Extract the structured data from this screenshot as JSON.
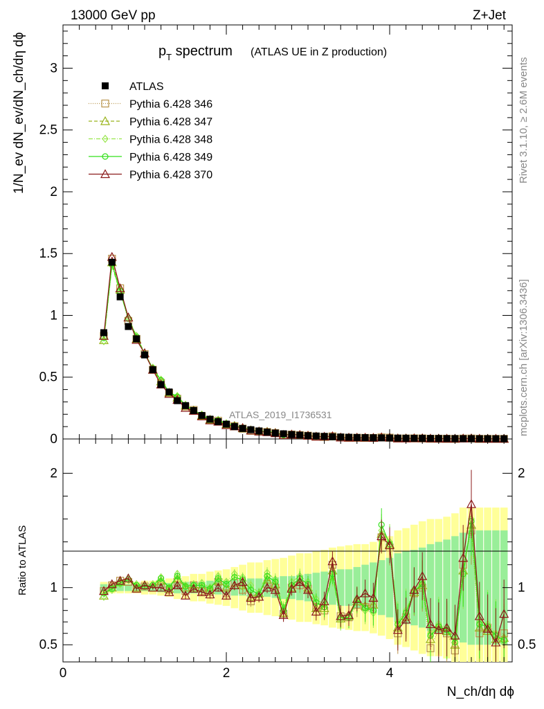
{
  "header": {
    "energy_label": "13000 GeV pp",
    "process_label": "Z+Jet",
    "side_label_top": "Rivet 3.1.10, ≥ 2.6M events",
    "side_label_bottom": "mcplots.cern.ch [arXiv:1306.3436]",
    "watermark": "ATLAS_2019_I1736531"
  },
  "chart_data": {
    "type": "scatter",
    "title_main": "p",
    "title_sub": "T",
    "title_rest": " spectrum",
    "title_note": "(ATLAS UE in Z production)",
    "ylabel": "1/N_ev dN_ev/dN_ch/dη dϕ",
    "ratio_ylabel": "Ratio to ATLAS",
    "xlabel": "N_ch/dη dϕ",
    "xlim": [
      0,
      5.5
    ],
    "ylim": [
      0,
      3.35
    ],
    "ratio_ylim": [
      0.35,
      2.3
    ],
    "x_ticks": [
      "0",
      "2",
      "4"
    ],
    "y_ticks": [
      "0",
      "0.5",
      "1",
      "1.5",
      "2",
      "2.5",
      "3"
    ],
    "ratio_y_ticks": [
      "0.5",
      "1",
      "2"
    ],
    "x": [
      0.5,
      0.6,
      0.7,
      0.8,
      0.9,
      1.0,
      1.1,
      1.2,
      1.3,
      1.4,
      1.5,
      1.6,
      1.7,
      1.8,
      1.9,
      2.0,
      2.1,
      2.2,
      2.3,
      2.4,
      2.5,
      2.6,
      2.7,
      2.8,
      2.9,
      3.0,
      3.1,
      3.2,
      3.3,
      3.4,
      3.5,
      3.6,
      3.7,
      3.8,
      3.9,
      4.0,
      4.1,
      4.2,
      4.3,
      4.4,
      4.5,
      4.6,
      4.7,
      4.8,
      4.9,
      5.0,
      5.1,
      5.2,
      5.3,
      5.4
    ],
    "atlas": [
      0.86,
      1.43,
      1.15,
      0.91,
      0.81,
      0.68,
      0.56,
      0.44,
      0.38,
      0.31,
      0.27,
      0.23,
      0.19,
      0.16,
      0.14,
      0.12,
      0.1,
      0.085,
      0.075,
      0.065,
      0.055,
      0.048,
      0.042,
      0.036,
      0.031,
      0.027,
      0.024,
      0.021,
      0.018,
      0.016,
      0.014,
      0.012,
      0.011,
      0.01,
      0.009,
      0.008,
      0.007,
      0.006,
      0.0055,
      0.005,
      0.0045,
      0.004,
      0.0035,
      0.003,
      0.0028,
      0.0026,
      0.0024,
      0.0022,
      0.002,
      0.0018
    ],
    "legend": [
      {
        "label": "ATLAS",
        "marker": "filled-square",
        "color": "#000000",
        "dash": ""
      },
      {
        "label": "Pythia 6.428 346",
        "marker": "open-square",
        "color": "#b8924a",
        "dash": "1,2"
      },
      {
        "label": "Pythia 6.428 347",
        "marker": "open-triangle",
        "color": "#99b31a",
        "dash": "5,3"
      },
      {
        "label": "Pythia 6.428 348",
        "marker": "open-diamond",
        "color": "#99e64d",
        "dash": "6,2,1,2"
      },
      {
        "label": "Pythia 6.428 349",
        "marker": "open-circle",
        "color": "#33e01a",
        "dash": ""
      },
      {
        "label": "Pythia 6.428 370",
        "marker": "open-triangle",
        "color": "#8b1a1a",
        "dash": ""
      }
    ],
    "series": [
      {
        "name": "Pythia 6.428 346",
        "ratio": [
          0.97,
          1.02,
          1.06,
          1.05,
          1.0,
          1.01,
          1.0,
          1.03,
          0.98,
          1.05,
          0.97,
          1.02,
          0.97,
          0.96,
          1.05,
          0.95,
          1.04,
          0.98,
          0.88,
          0.92,
          1.03,
          1.0,
          0.77,
          1.0,
          1.02,
          0.99,
          0.83,
          0.8,
          1.2,
          0.75,
          0.74,
          0.85,
          0.83,
          0.86,
          1.44,
          1.35,
          0.6,
          0.74,
          0.95,
          1.0,
          0.47,
          0.63,
          0.6,
          0.45,
          1.2,
          1.5,
          0.6,
          0.65,
          0.58,
          0.6
        ]
      },
      {
        "name": "Pythia 6.428 347",
        "ratio": [
          0.93,
          1.0,
          1.05,
          1.08,
          1.0,
          1.02,
          1.0,
          1.06,
          0.99,
          1.08,
          1.0,
          1.0,
          1.0,
          0.98,
          1.06,
          1.0,
          1.02,
          1.02,
          0.92,
          0.95,
          1.07,
          1.03,
          0.78,
          1.0,
          1.05,
          1.0,
          0.82,
          0.82,
          1.15,
          0.73,
          0.75,
          0.88,
          0.84,
          0.85,
          1.47,
          1.38,
          0.65,
          0.75,
          0.96,
          1.02,
          0.55,
          0.65,
          0.62,
          0.5,
          1.15,
          1.55,
          0.65,
          0.62,
          0.55,
          0.56
        ]
      },
      {
        "name": "Pythia 6.428 348",
        "ratio": [
          0.92,
          0.98,
          1.03,
          1.08,
          1.03,
          1.02,
          1.03,
          1.09,
          1.0,
          1.12,
          1.02,
          1.03,
          1.04,
          1.0,
          1.1,
          1.05,
          1.12,
          1.09,
          1.02,
          0.95,
          1.13,
          1.07,
          0.82,
          1.05,
          1.1,
          1.05,
          0.9,
          0.85,
          1.1,
          0.72,
          0.75,
          0.9,
          0.8,
          0.78,
          1.5,
          1.4,
          0.7,
          0.8,
          0.98,
          1.05,
          0.6,
          0.68,
          0.65,
          0.55,
          1.1,
          1.6,
          0.7,
          0.68,
          0.6,
          0.52
        ]
      },
      {
        "name": "Pythia 6.428 349",
        "ratio": [
          0.95,
          0.99,
          1.04,
          1.07,
          1.02,
          1.01,
          1.02,
          1.08,
          1.0,
          1.1,
          1.01,
          1.02,
          1.02,
          0.99,
          1.08,
          1.03,
          1.09,
          1.07,
          0.98,
          0.94,
          1.1,
          1.05,
          0.8,
          1.02,
          1.08,
          1.03,
          0.87,
          0.83,
          1.12,
          0.74,
          0.74,
          0.89,
          0.82,
          0.8,
          1.55,
          1.38,
          0.68,
          0.78,
          0.97,
          1.03,
          0.58,
          0.66,
          0.63,
          0.52,
          1.12,
          1.58,
          0.68,
          0.66,
          0.58,
          0.54
        ]
      },
      {
        "name": "Pythia 6.428 370",
        "ratio": [
          0.97,
          1.03,
          1.06,
          1.08,
          0.99,
          1.02,
          1.0,
          1.0,
          0.96,
          1.02,
          0.93,
          0.99,
          0.96,
          0.94,
          1.0,
          0.93,
          1.02,
          1.05,
          0.91,
          0.92,
          1.0,
          0.98,
          0.76,
          0.99,
          1.05,
          0.98,
          0.79,
          0.88,
          1.23,
          0.75,
          0.76,
          0.9,
          0.95,
          0.91,
          1.45,
          1.37,
          0.63,
          0.72,
          0.98,
          1.1,
          0.68,
          0.63,
          0.65,
          0.58,
          1.26,
          1.73,
          0.75,
          0.64,
          0.52,
          0.77
        ]
      }
    ],
    "band_stat": [
      0.03,
      0.03,
      0.03,
      0.03,
      0.03,
      0.03,
      0.03,
      0.04,
      0.04,
      0.05,
      0.05,
      0.05,
      0.05,
      0.06,
      0.06,
      0.06,
      0.07,
      0.07,
      0.08,
      0.08,
      0.08,
      0.09,
      0.1,
      0.1,
      0.11,
      0.12,
      0.13,
      0.14,
      0.15,
      0.16,
      0.16,
      0.18,
      0.2,
      0.22,
      0.24,
      0.26,
      0.3,
      0.32,
      0.33,
      0.35,
      0.38,
      0.4,
      0.42,
      0.45,
      0.48,
      0.5,
      0.5,
      0.5,
      0.5,
      0.5
    ],
    "band_syst": [
      0.05,
      0.05,
      0.05,
      0.05,
      0.05,
      0.06,
      0.06,
      0.07,
      0.08,
      0.1,
      0.1,
      0.12,
      0.12,
      0.14,
      0.15,
      0.16,
      0.18,
      0.2,
      0.22,
      0.22,
      0.24,
      0.25,
      0.26,
      0.28,
      0.3,
      0.3,
      0.32,
      0.33,
      0.35,
      0.36,
      0.37,
      0.38,
      0.38,
      0.4,
      0.42,
      0.45,
      0.5,
      0.52,
      0.55,
      0.58,
      0.6,
      0.6,
      0.62,
      0.65,
      0.7,
      0.7,
      0.7,
      0.7,
      0.7,
      0.7
    ]
  }
}
